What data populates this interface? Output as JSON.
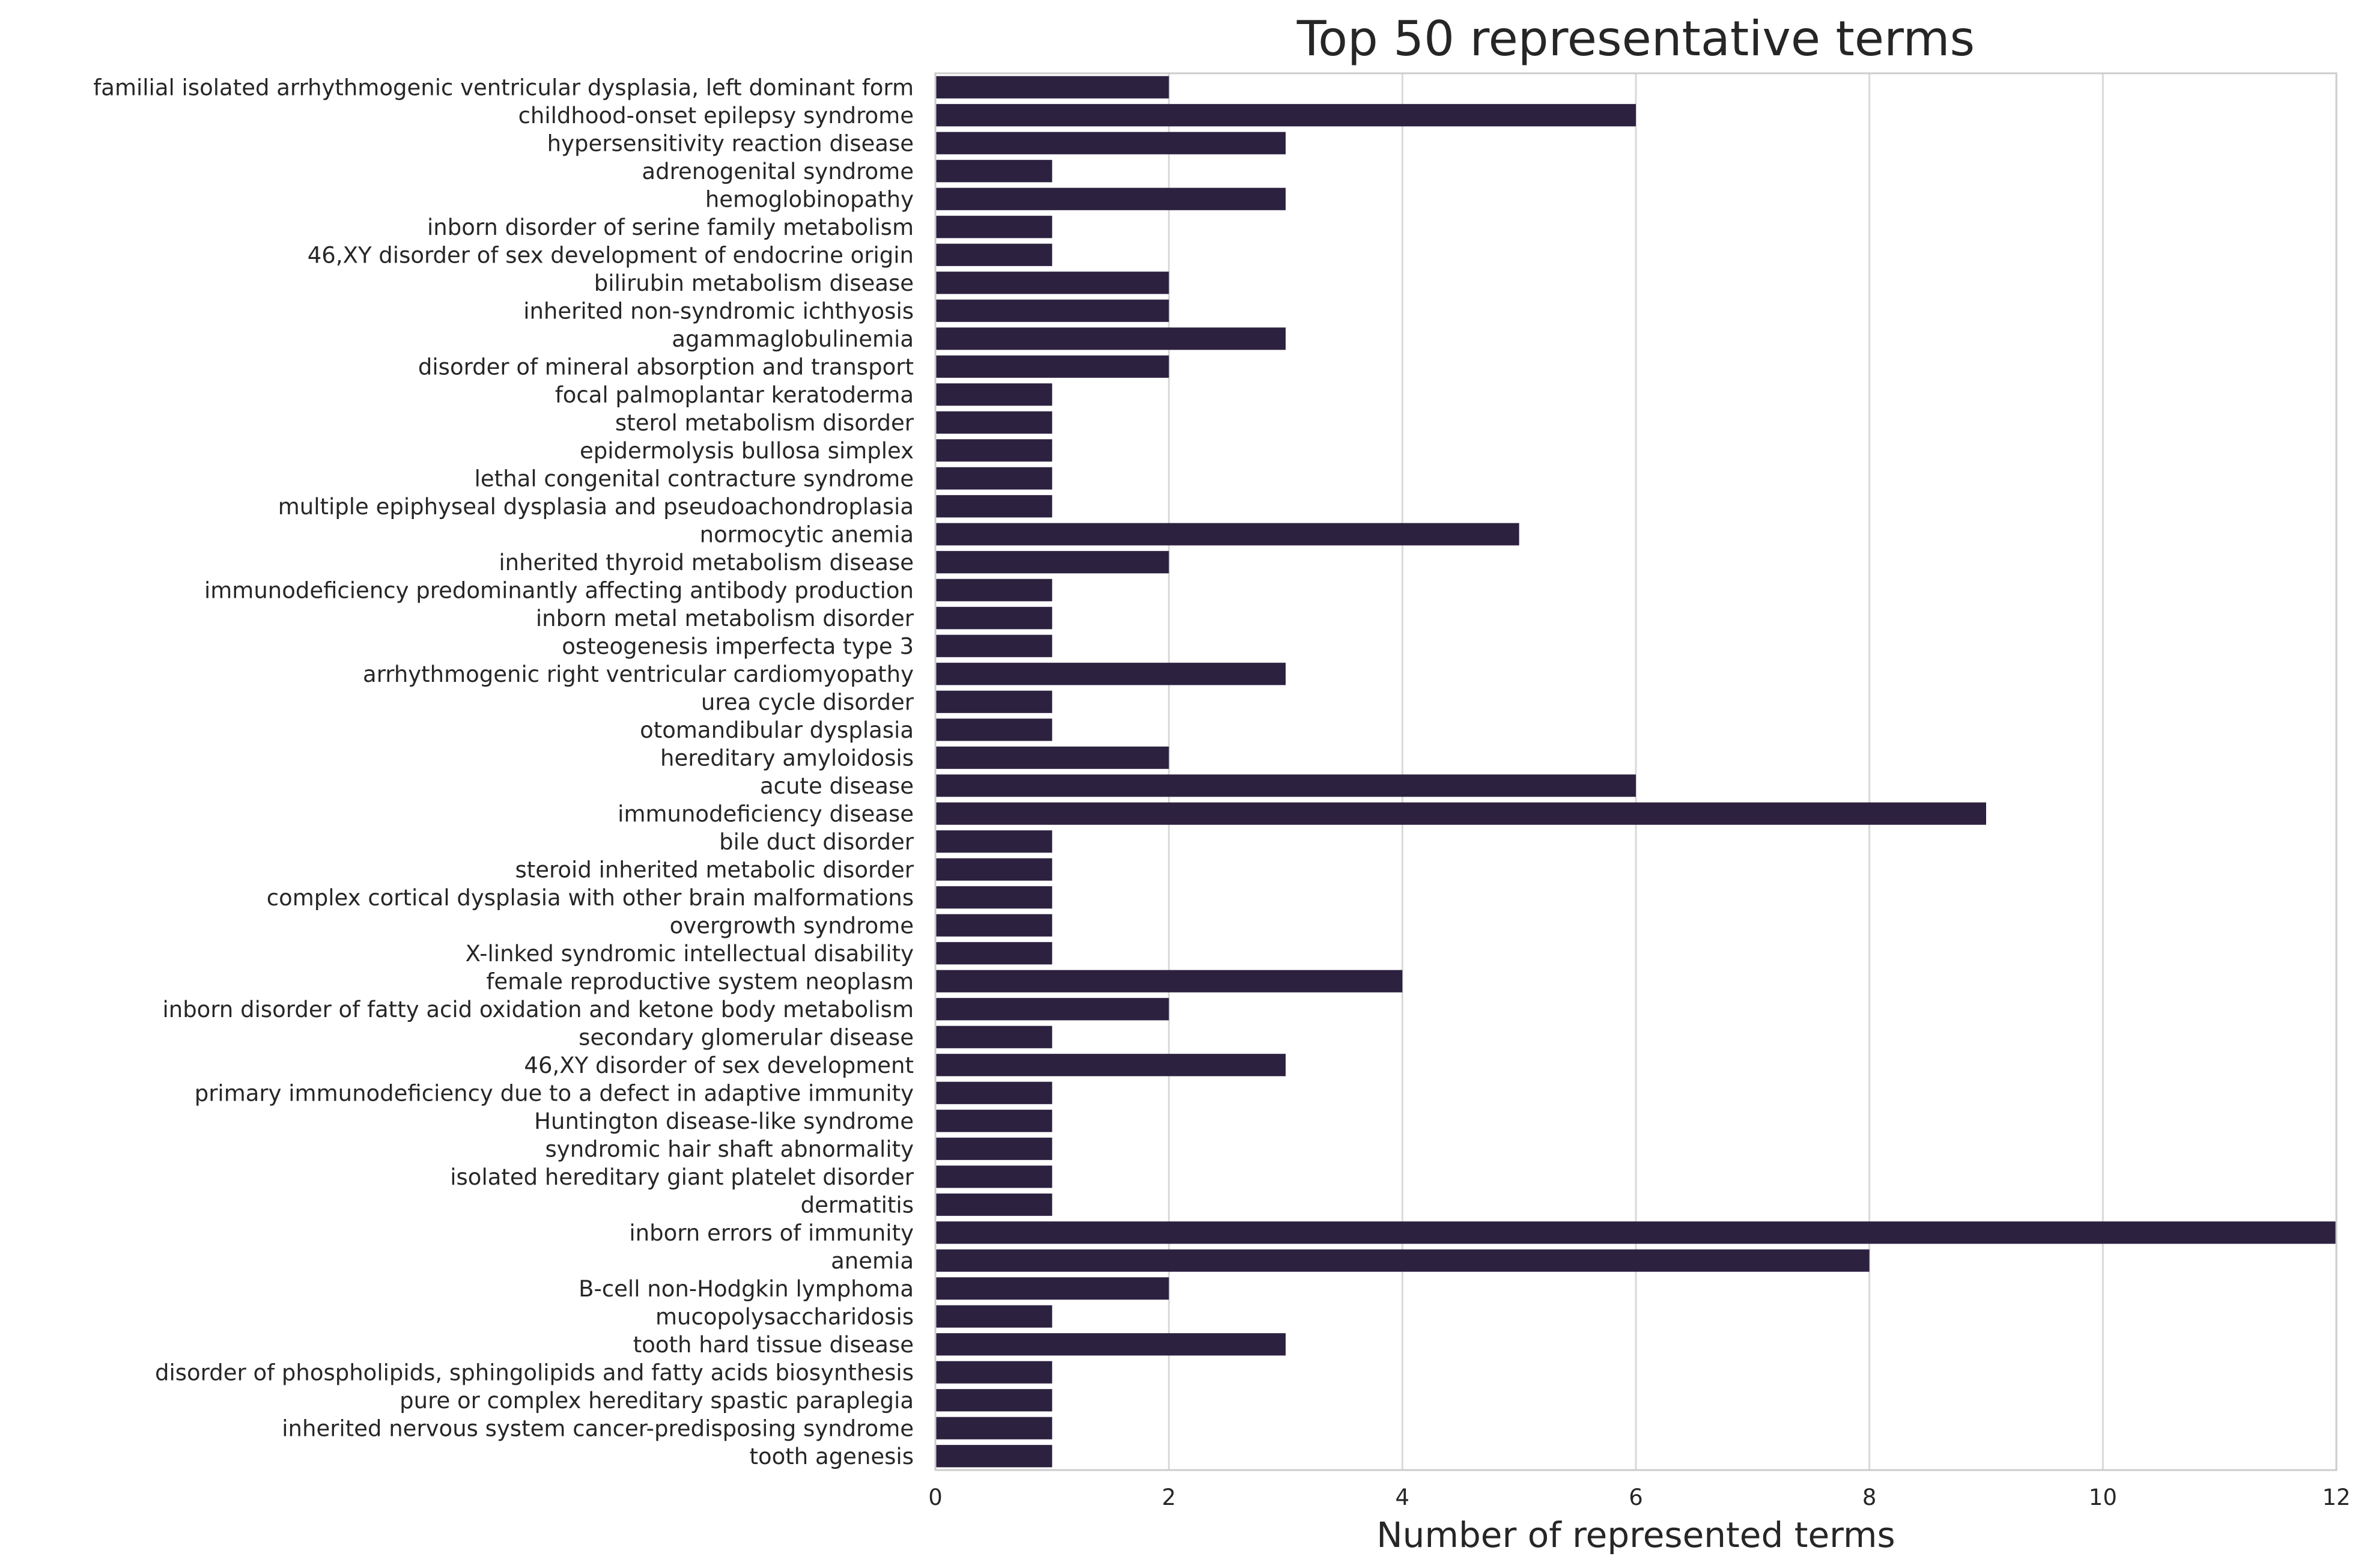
{
  "chart_data": {
    "type": "bar",
    "orientation": "horizontal",
    "title": "Top 50 representative terms",
    "xlabel": "Number of represented terms",
    "ylabel": "",
    "xlim": [
      0,
      12
    ],
    "xticks": [
      0,
      2,
      4,
      6,
      8,
      10,
      12
    ],
    "grid": "vertical",
    "bar_color": "#2d2140",
    "categories": [
      "familial isolated arrhythmogenic ventricular dysplasia, left dominant form",
      "childhood-onset epilepsy syndrome",
      "hypersensitivity reaction disease",
      "adrenogenital syndrome",
      "hemoglobinopathy",
      "inborn disorder of serine family metabolism",
      "46,XY disorder of sex development of endocrine origin",
      "bilirubin metabolism disease",
      "inherited non-syndromic ichthyosis",
      "agammaglobulinemia",
      "disorder of mineral absorption and transport",
      "focal palmoplantar keratoderma",
      "sterol metabolism disorder",
      "epidermolysis bullosa simplex",
      "lethal congenital contracture syndrome",
      "multiple epiphyseal dysplasia and pseudoachondroplasia",
      "normocytic anemia",
      "inherited thyroid metabolism disease",
      "immunodeficiency predominantly affecting antibody production",
      "inborn metal metabolism disorder",
      "osteogenesis imperfecta type 3",
      "arrhythmogenic right ventricular cardiomyopathy",
      "urea cycle disorder",
      "otomandibular dysplasia",
      "hereditary amyloidosis",
      "acute disease",
      "immunodeficiency disease",
      "bile duct disorder",
      "steroid inherited metabolic disorder",
      "complex cortical dysplasia with other brain malformations",
      "overgrowth syndrome",
      "X-linked syndromic intellectual disability",
      "female reproductive system neoplasm",
      "inborn disorder of fatty acid oxidation and ketone body metabolism",
      "secondary glomerular disease",
      "46,XY disorder of sex development",
      "primary immunodeficiency due to a defect in adaptive immunity",
      "Huntington disease-like syndrome",
      "syndromic hair shaft abnormality",
      "isolated hereditary giant platelet disorder",
      "dermatitis",
      "inborn errors of immunity",
      "anemia",
      "B-cell non-Hodgkin lymphoma",
      "mucopolysaccharidosis",
      "tooth hard tissue disease",
      "disorder of phospholipids, sphingolipids and fatty acids biosynthesis",
      "pure or complex hereditary spastic paraplegia",
      "inherited nervous system cancer-predisposing syndrome",
      "tooth agenesis"
    ],
    "values": [
      2,
      6,
      3,
      1,
      3,
      1,
      1,
      2,
      2,
      3,
      2,
      1,
      1,
      1,
      1,
      1,
      5,
      2,
      1,
      1,
      1,
      3,
      1,
      1,
      2,
      6,
      9,
      1,
      1,
      1,
      1,
      1,
      4,
      2,
      1,
      3,
      1,
      1,
      1,
      1,
      1,
      12,
      8,
      2,
      1,
      3,
      1,
      1,
      1,
      1
    ]
  }
}
